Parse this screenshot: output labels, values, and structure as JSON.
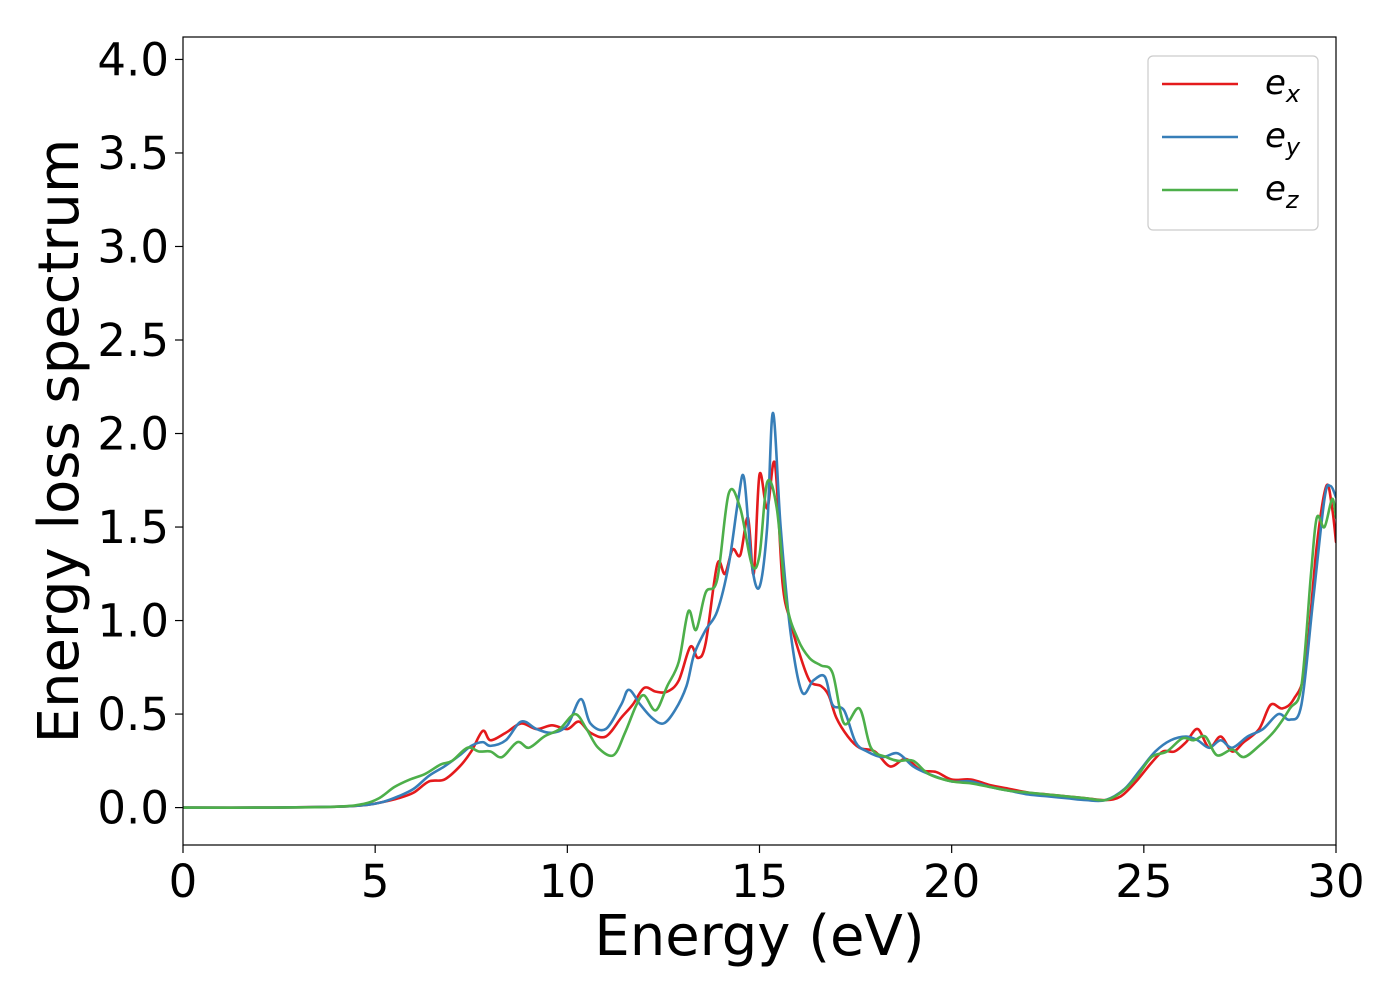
{
  "chart_data": {
    "type": "line",
    "title": "",
    "xlabel": "Energy (eV)",
    "ylabel": "Energy loss spectrum",
    "xlim": [
      0,
      30
    ],
    "ylim": [
      -0.2,
      4.12
    ],
    "xticks": [
      0,
      5,
      10,
      15,
      20,
      25,
      30
    ],
    "xtick_labels": [
      "0",
      "5",
      "10",
      "15",
      "20",
      "25",
      "30"
    ],
    "yticks": [
      0.0,
      0.5,
      1.0,
      1.5,
      2.0,
      2.5,
      3.0,
      3.5,
      4.0
    ],
    "ytick_labels": [
      "0.0",
      "0.5",
      "1.0",
      "1.5",
      "2.0",
      "2.5",
      "3.0",
      "3.5",
      "4.0"
    ],
    "grid": false,
    "legend_position": "top-right",
    "series": [
      {
        "name": "e_x",
        "legend_base": "e",
        "legend_sub": "x",
        "color": "#e41a1c",
        "points": [
          [
            0,
            0
          ],
          [
            2,
            0.0
          ],
          [
            4,
            0.005
          ],
          [
            4.8,
            0.015
          ],
          [
            5.2,
            0.03
          ],
          [
            5.6,
            0.05
          ],
          [
            6.0,
            0.08
          ],
          [
            6.4,
            0.14
          ],
          [
            6.8,
            0.15
          ],
          [
            7.2,
            0.22
          ],
          [
            7.5,
            0.3
          ],
          [
            7.8,
            0.41
          ],
          [
            8.0,
            0.36
          ],
          [
            8.4,
            0.4
          ],
          [
            8.8,
            0.45
          ],
          [
            9.2,
            0.42
          ],
          [
            9.6,
            0.44
          ],
          [
            10.0,
            0.42
          ],
          [
            10.3,
            0.46
          ],
          [
            10.6,
            0.4
          ],
          [
            11.0,
            0.38
          ],
          [
            11.4,
            0.48
          ],
          [
            11.7,
            0.55
          ],
          [
            12.0,
            0.64
          ],
          [
            12.3,
            0.62
          ],
          [
            12.6,
            0.62
          ],
          [
            12.9,
            0.68
          ],
          [
            13.2,
            0.86
          ],
          [
            13.4,
            0.8
          ],
          [
            13.6,
            0.88
          ],
          [
            13.9,
            1.3
          ],
          [
            14.1,
            1.25
          ],
          [
            14.3,
            1.38
          ],
          [
            14.5,
            1.35
          ],
          [
            14.7,
            1.55
          ],
          [
            14.85,
            1.25
          ],
          [
            15.0,
            1.78
          ],
          [
            15.2,
            1.6
          ],
          [
            15.4,
            1.84
          ],
          [
            15.6,
            1.2
          ],
          [
            15.8,
            1.0
          ],
          [
            16.0,
            0.85
          ],
          [
            16.3,
            0.68
          ],
          [
            16.6,
            0.65
          ],
          [
            16.8,
            0.6
          ],
          [
            17.0,
            0.48
          ],
          [
            17.3,
            0.38
          ],
          [
            17.6,
            0.32
          ],
          [
            18.0,
            0.3
          ],
          [
            18.4,
            0.22
          ],
          [
            18.8,
            0.26
          ],
          [
            19.2,
            0.2
          ],
          [
            19.6,
            0.19
          ],
          [
            20.0,
            0.15
          ],
          [
            20.5,
            0.15
          ],
          [
            21.0,
            0.12
          ],
          [
            21.5,
            0.1
          ],
          [
            22.0,
            0.08
          ],
          [
            22.5,
            0.07
          ],
          [
            23.0,
            0.06
          ],
          [
            23.5,
            0.05
          ],
          [
            24.0,
            0.04
          ],
          [
            24.4,
            0.06
          ],
          [
            24.8,
            0.14
          ],
          [
            25.2,
            0.24
          ],
          [
            25.5,
            0.3
          ],
          [
            25.8,
            0.3
          ],
          [
            26.1,
            0.35
          ],
          [
            26.4,
            0.42
          ],
          [
            26.7,
            0.32
          ],
          [
            27.0,
            0.38
          ],
          [
            27.3,
            0.3
          ],
          [
            27.6,
            0.35
          ],
          [
            28.0,
            0.42
          ],
          [
            28.3,
            0.55
          ],
          [
            28.6,
            0.53
          ],
          [
            28.9,
            0.58
          ],
          [
            29.2,
            0.75
          ],
          [
            29.5,
            1.4
          ],
          [
            29.75,
            1.72
          ],
          [
            29.9,
            1.6
          ],
          [
            30.0,
            1.42
          ]
        ]
      },
      {
        "name": "e_y",
        "legend_base": "e",
        "legend_sub": "y",
        "color": "#377eb8",
        "points": [
          [
            0,
            0
          ],
          [
            2,
            0.0
          ],
          [
            4,
            0.005
          ],
          [
            4.8,
            0.015
          ],
          [
            5.2,
            0.03
          ],
          [
            5.6,
            0.06
          ],
          [
            6.0,
            0.1
          ],
          [
            6.4,
            0.17
          ],
          [
            6.8,
            0.22
          ],
          [
            7.2,
            0.28
          ],
          [
            7.5,
            0.33
          ],
          [
            7.8,
            0.35
          ],
          [
            8.0,
            0.33
          ],
          [
            8.4,
            0.36
          ],
          [
            8.8,
            0.46
          ],
          [
            9.2,
            0.42
          ],
          [
            9.6,
            0.4
          ],
          [
            10.0,
            0.44
          ],
          [
            10.35,
            0.58
          ],
          [
            10.6,
            0.45
          ],
          [
            11.0,
            0.42
          ],
          [
            11.4,
            0.55
          ],
          [
            11.6,
            0.63
          ],
          [
            11.9,
            0.55
          ],
          [
            12.2,
            0.48
          ],
          [
            12.5,
            0.45
          ],
          [
            12.8,
            0.52
          ],
          [
            13.1,
            0.65
          ],
          [
            13.3,
            0.82
          ],
          [
            13.6,
            0.95
          ],
          [
            13.9,
            1.05
          ],
          [
            14.2,
            1.3
          ],
          [
            14.45,
            1.65
          ],
          [
            14.6,
            1.76
          ],
          [
            14.8,
            1.3
          ],
          [
            15.0,
            1.18
          ],
          [
            15.2,
            1.5
          ],
          [
            15.35,
            2.11
          ],
          [
            15.55,
            1.5
          ],
          [
            15.8,
            0.95
          ],
          [
            16.1,
            0.62
          ],
          [
            16.4,
            0.68
          ],
          [
            16.7,
            0.7
          ],
          [
            16.9,
            0.55
          ],
          [
            17.2,
            0.52
          ],
          [
            17.5,
            0.35
          ],
          [
            17.8,
            0.3
          ],
          [
            18.2,
            0.27
          ],
          [
            18.6,
            0.29
          ],
          [
            19.0,
            0.22
          ],
          [
            19.4,
            0.18
          ],
          [
            20.0,
            0.14
          ],
          [
            20.5,
            0.14
          ],
          [
            21.0,
            0.11
          ],
          [
            21.5,
            0.09
          ],
          [
            22.0,
            0.07
          ],
          [
            22.5,
            0.06
          ],
          [
            23.0,
            0.05
          ],
          [
            23.5,
            0.04
          ],
          [
            24.0,
            0.04
          ],
          [
            24.5,
            0.1
          ],
          [
            24.9,
            0.2
          ],
          [
            25.3,
            0.3
          ],
          [
            25.7,
            0.36
          ],
          [
            26.1,
            0.38
          ],
          [
            26.4,
            0.36
          ],
          [
            26.7,
            0.32
          ],
          [
            27.0,
            0.36
          ],
          [
            27.3,
            0.32
          ],
          [
            27.7,
            0.38
          ],
          [
            28.1,
            0.42
          ],
          [
            28.5,
            0.5
          ],
          [
            28.8,
            0.47
          ],
          [
            29.1,
            0.55
          ],
          [
            29.4,
            1.1
          ],
          [
            29.7,
            1.65
          ],
          [
            29.85,
            1.72
          ],
          [
            30.0,
            1.66
          ]
        ]
      },
      {
        "name": "e_z",
        "legend_base": "e",
        "legend_sub": "z",
        "color": "#4daf4a",
        "points": [
          [
            0,
            0
          ],
          [
            2,
            0.0
          ],
          [
            4,
            0.005
          ],
          [
            4.7,
            0.02
          ],
          [
            5.1,
            0.05
          ],
          [
            5.5,
            0.11
          ],
          [
            5.9,
            0.15
          ],
          [
            6.3,
            0.18
          ],
          [
            6.7,
            0.23
          ],
          [
            7.0,
            0.25
          ],
          [
            7.4,
            0.32
          ],
          [
            7.7,
            0.3
          ],
          [
            8.0,
            0.3
          ],
          [
            8.3,
            0.27
          ],
          [
            8.7,
            0.35
          ],
          [
            9.0,
            0.32
          ],
          [
            9.4,
            0.38
          ],
          [
            9.8,
            0.42
          ],
          [
            10.2,
            0.5
          ],
          [
            10.5,
            0.42
          ],
          [
            10.8,
            0.32
          ],
          [
            11.2,
            0.28
          ],
          [
            11.5,
            0.4
          ],
          [
            11.8,
            0.55
          ],
          [
            12.0,
            0.6
          ],
          [
            12.3,
            0.52
          ],
          [
            12.6,
            0.65
          ],
          [
            12.9,
            0.78
          ],
          [
            13.15,
            1.05
          ],
          [
            13.35,
            0.95
          ],
          [
            13.6,
            1.15
          ],
          [
            13.9,
            1.22
          ],
          [
            14.2,
            1.68
          ],
          [
            14.5,
            1.6
          ],
          [
            14.8,
            1.3
          ],
          [
            15.0,
            1.35
          ],
          [
            15.2,
            1.74
          ],
          [
            15.45,
            1.6
          ],
          [
            15.7,
            1.1
          ],
          [
            16.0,
            0.9
          ],
          [
            16.3,
            0.8
          ],
          [
            16.6,
            0.76
          ],
          [
            16.9,
            0.72
          ],
          [
            17.2,
            0.45
          ],
          [
            17.6,
            0.53
          ],
          [
            17.9,
            0.32
          ],
          [
            18.3,
            0.27
          ],
          [
            18.6,
            0.25
          ],
          [
            19.0,
            0.25
          ],
          [
            19.4,
            0.18
          ],
          [
            20.0,
            0.14
          ],
          [
            20.5,
            0.13
          ],
          [
            21.0,
            0.11
          ],
          [
            21.5,
            0.09
          ],
          [
            22.0,
            0.08
          ],
          [
            22.5,
            0.07
          ],
          [
            23.0,
            0.06
          ],
          [
            23.5,
            0.05
          ],
          [
            24.0,
            0.04
          ],
          [
            24.4,
            0.08
          ],
          [
            24.8,
            0.16
          ],
          [
            25.2,
            0.27
          ],
          [
            25.6,
            0.3
          ],
          [
            26.0,
            0.37
          ],
          [
            26.3,
            0.36
          ],
          [
            26.6,
            0.38
          ],
          [
            26.9,
            0.28
          ],
          [
            27.3,
            0.31
          ],
          [
            27.6,
            0.27
          ],
          [
            28.0,
            0.33
          ],
          [
            28.4,
            0.41
          ],
          [
            28.8,
            0.53
          ],
          [
            29.1,
            0.65
          ],
          [
            29.35,
            1.25
          ],
          [
            29.5,
            1.55
          ],
          [
            29.7,
            1.5
          ],
          [
            29.9,
            1.65
          ],
          [
            30.0,
            1.55
          ]
        ]
      }
    ]
  }
}
